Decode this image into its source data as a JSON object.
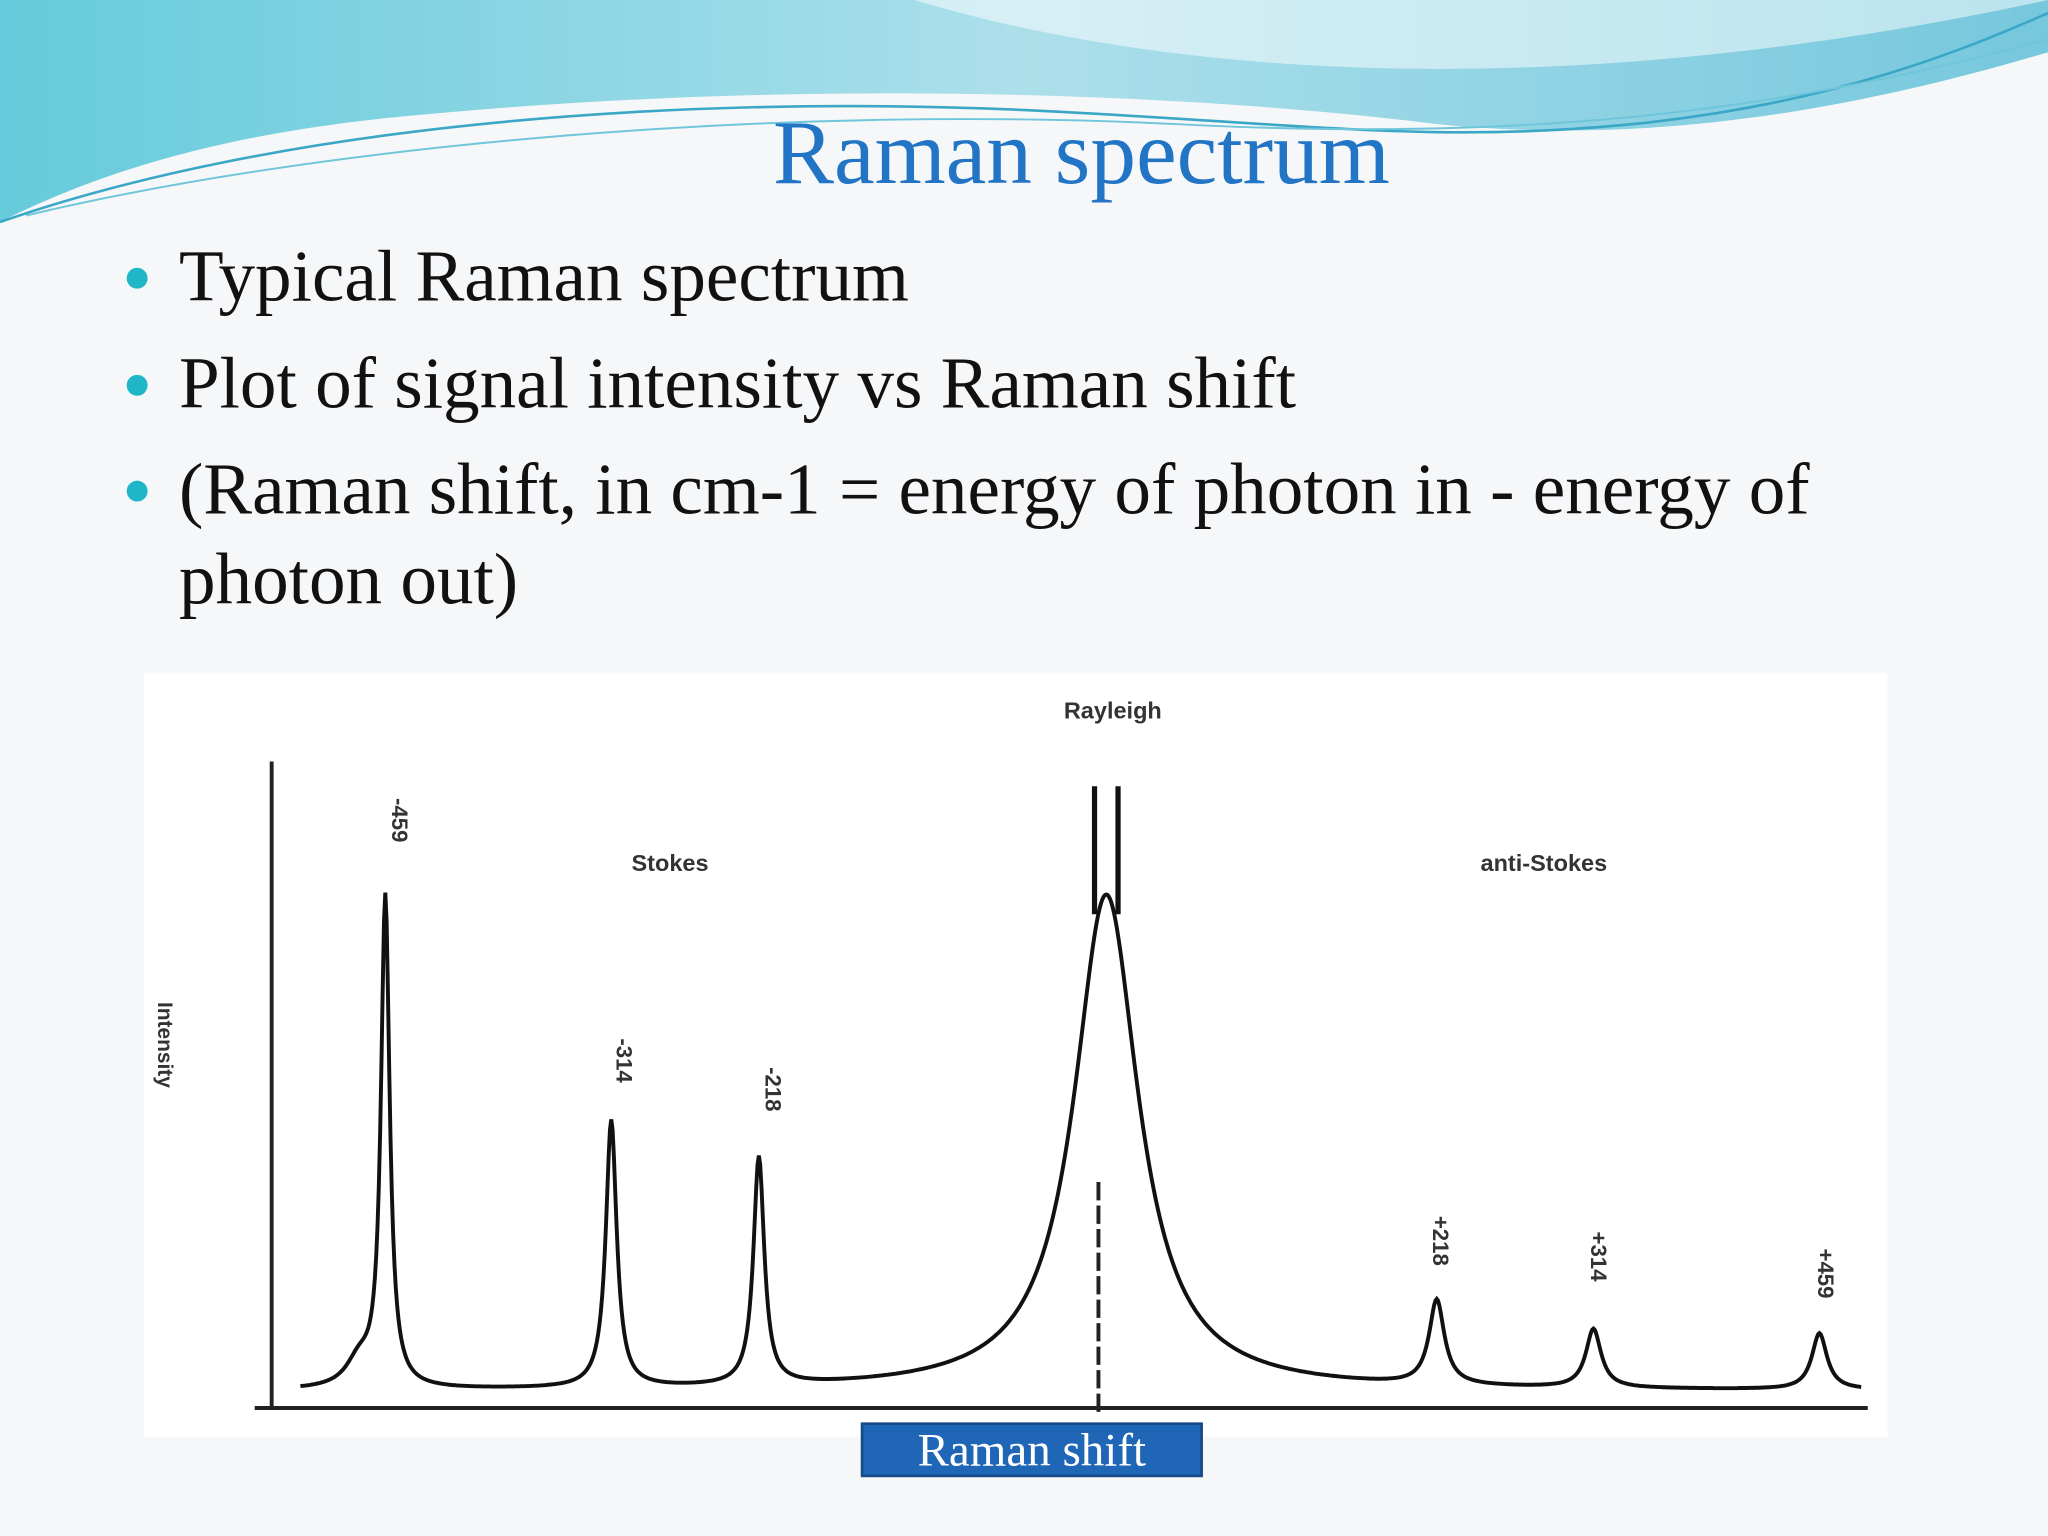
{
  "slide": {
    "title": "Raman spectrum",
    "bullets": [
      "Typical Raman spectrum",
      "Plot of signal intensity  vs Raman shift",
      "(Raman shift, in cm-1 = energy of photon in - energy of",
      "photon out)"
    ],
    "figure": {
      "y_label": "Intensity",
      "x_label": "Raman shift",
      "rayleigh": "Rayleigh",
      "stokes": "Stokes",
      "anti_stokes": "anti-Stokes",
      "peak_labels": [
        "-459",
        "-314",
        "-218",
        "+218",
        "+314",
        "+459"
      ]
    }
  }
}
